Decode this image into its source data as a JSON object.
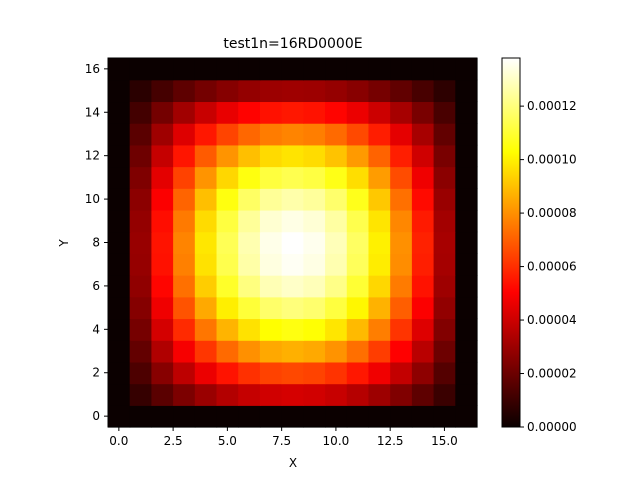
{
  "chart_data": {
    "type": "heatmap",
    "title": "test1n=16RD0000E",
    "xlabel": "X",
    "ylabel": "Y",
    "colormap": "hot",
    "xlim": [
      -0.5,
      16.5
    ],
    "ylim": [
      -0.5,
      16.5
    ],
    "xticks": [
      0.0,
      2.5,
      5.0,
      7.5,
      10.0,
      12.5,
      15.0
    ],
    "xtick_labels": [
      "0.0",
      "2.5",
      "5.0",
      "7.5",
      "10.0",
      "12.5",
      "15.0"
    ],
    "yticks": [
      0,
      2,
      4,
      6,
      8,
      10,
      12,
      14,
      16
    ],
    "ytick_labels": [
      "0",
      "2",
      "4",
      "6",
      "8",
      "10",
      "12",
      "14",
      "16"
    ],
    "grid": false,
    "grid_size": 17,
    "peak_x": 7.5,
    "peak_y": 9.5,
    "value_max": 0.000138,
    "colorbar": {
      "vmin": 0.0,
      "vmax": 0.000138,
      "ticks": [
        0.0,
        2e-05,
        4e-05,
        6e-05,
        8e-05,
        0.0001,
        0.00012
      ],
      "tick_labels": [
        "0.00000",
        "0.00002",
        "0.00004",
        "0.00006",
        "0.00008",
        "0.00010",
        "0.00012"
      ]
    }
  }
}
